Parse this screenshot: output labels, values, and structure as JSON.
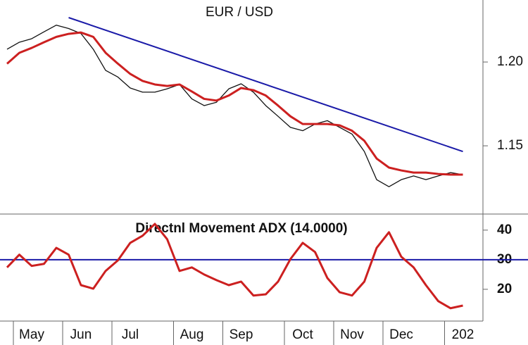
{
  "chart_data": [
    {
      "type": "line",
      "title": "EUR / USD",
      "categories": [
        null,
        null,
        "May",
        null,
        null,
        null,
        "Jun",
        null,
        null,
        null,
        "Jul",
        null,
        null,
        null,
        null,
        "Aug",
        null,
        null,
        null,
        "Sep",
        null,
        null,
        null,
        null,
        "Oct",
        null,
        null,
        null,
        "Nov",
        null,
        null,
        null,
        "Dec",
        null,
        null,
        null,
        null,
        "202"
      ],
      "series": [
        {
          "color": "#111111",
          "values": [
            1.2076,
            1.2118,
            1.2139,
            1.218,
            1.222,
            1.22,
            1.217,
            1.2076,
            1.195,
            1.191,
            1.1845,
            1.182,
            1.182,
            1.184,
            1.1866,
            1.178,
            1.174,
            1.176,
            1.184,
            1.187,
            1.182,
            1.174,
            1.1676,
            1.161,
            1.159,
            1.163,
            1.165,
            1.161,
            1.157,
            1.1466,
            1.1298,
            1.1256,
            1.1298,
            1.132,
            1.1298,
            1.132,
            1.134,
            1.1328
          ]
        },
        {
          "color": "#cc2020",
          "values": [
            1.199,
            1.2055,
            1.2084,
            1.2118,
            1.215,
            1.2168,
            1.2176,
            1.215,
            1.2055,
            1.199,
            1.1929,
            1.1887,
            1.1866,
            1.1857,
            1.1866,
            1.1824,
            1.178,
            1.177,
            1.18,
            1.1845,
            1.1832,
            1.18,
            1.174,
            1.1676,
            1.163,
            1.163,
            1.163,
            1.1622,
            1.159,
            1.153,
            1.1424,
            1.137,
            1.1353,
            1.134,
            1.134,
            1.1332,
            1.1328,
            1.1328
          ]
        }
      ],
      "trendline": {
        "color": "#1a1aa8",
        "points": [
          {
            "x": 5,
            "value": 1.2265
          },
          {
            "x": 37,
            "value": 1.1466
          }
        ]
      },
      "ylim": [
        1.1097,
        1.237
      ],
      "yticks": [
        {
          "value": 1.2,
          "label": "1.20"
        },
        {
          "value": 1.15,
          "label": "1.15"
        }
      ]
    },
    {
      "type": "line",
      "title": "Directnl Movement ADX (14.0000)",
      "series": [
        {
          "color": "#cc2020",
          "values": [
            27.4,
            31.7,
            27.9,
            28.6,
            34,
            31.7,
            21.4,
            20.2,
            26.2,
            29.8,
            35.7,
            38.1,
            42.1,
            36.9,
            26.2,
            27.4,
            25,
            23.1,
            21.4,
            22.6,
            17.9,
            18.3,
            22.6,
            30.2,
            35.7,
            32.6,
            23.8,
            19,
            17.9,
            22.6,
            34,
            39.3,
            31,
            27.4,
            21.4,
            16,
            13.6,
            14.5
          ]
        }
      ],
      "reference": {
        "value": 30,
        "color": "#1a1aa8"
      },
      "ylim": [
        9.5,
        45.2
      ],
      "yticks": [
        20,
        30,
        40
      ]
    }
  ]
}
